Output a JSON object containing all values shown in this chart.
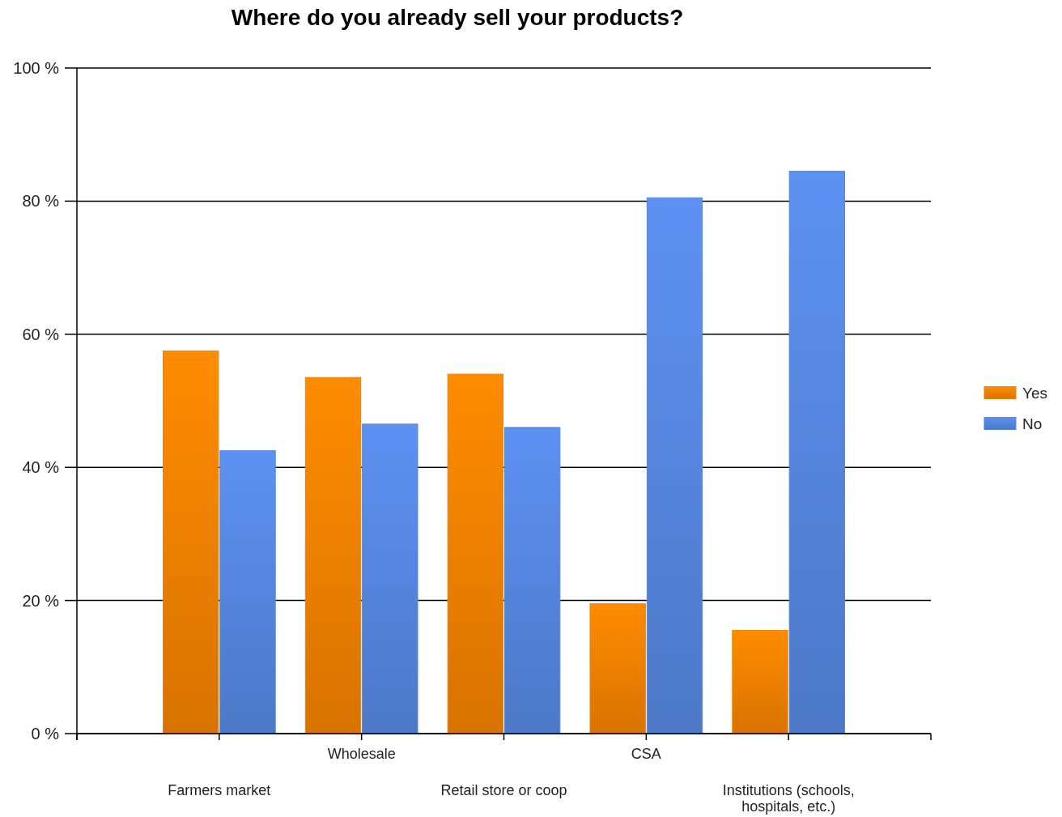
{
  "chart_data": {
    "type": "bar",
    "title": "Where do you already sell your products?",
    "categories": [
      "Farmers market",
      "Wholesale",
      "Retail store or coop",
      "CSA",
      "Institutions (schools, hospitals, etc.)"
    ],
    "series": [
      {
        "name": "Yes",
        "color": "#f08000",
        "values": [
          57.5,
          53.5,
          54,
          19.5,
          15.5
        ]
      },
      {
        "name": "No",
        "color": "#5585dd",
        "values": [
          42.5,
          46.5,
          46,
          80.5,
          84.5
        ]
      }
    ],
    "ylim": [
      0,
      100
    ],
    "yticks": [
      {
        "value": 0,
        "label": "0 %"
      },
      {
        "value": 20,
        "label": "20 %"
      },
      {
        "value": 40,
        "label": "40 %"
      },
      {
        "value": 60,
        "label": "60 %"
      },
      {
        "value": 80,
        "label": "80 %"
      },
      {
        "value": 100,
        "label": "100 %"
      }
    ],
    "grid": "y",
    "legend": "right"
  }
}
